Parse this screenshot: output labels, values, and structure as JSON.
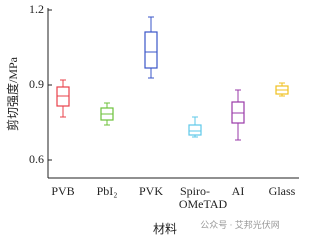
{
  "chart_data": {
    "type": "box",
    "y_label": "剪切强度/MPa",
    "x_label": "材料",
    "watermark": "公众号 · 艾邦光伏网",
    "categories": [
      "PVB",
      "PbI₂",
      "PVK",
      "Spiro-OMeTAD",
      "AI",
      "Glass"
    ],
    "colors": [
      "#e8404a",
      "#6cc23a",
      "#3a55c8",
      "#5ec8e8",
      "#9a3aa8",
      "#f0c020"
    ],
    "whislo": [
      0.772,
      0.74,
      0.928,
      0.692,
      0.68,
      0.856
    ],
    "q1": [
      0.816,
      0.76,
      0.968,
      0.7,
      0.748,
      0.864
    ],
    "med": [
      0.856,
      0.784,
      1.032,
      0.716,
      0.788,
      0.88
    ],
    "q3": [
      0.892,
      0.808,
      1.112,
      0.74,
      0.832,
      0.896
    ],
    "whishi": [
      0.92,
      0.828,
      1.172,
      0.772,
      0.88,
      0.908
    ],
    "ylim": [
      0.528,
      1.2
    ],
    "yticks": [
      0.6,
      0.9,
      1.2
    ]
  }
}
